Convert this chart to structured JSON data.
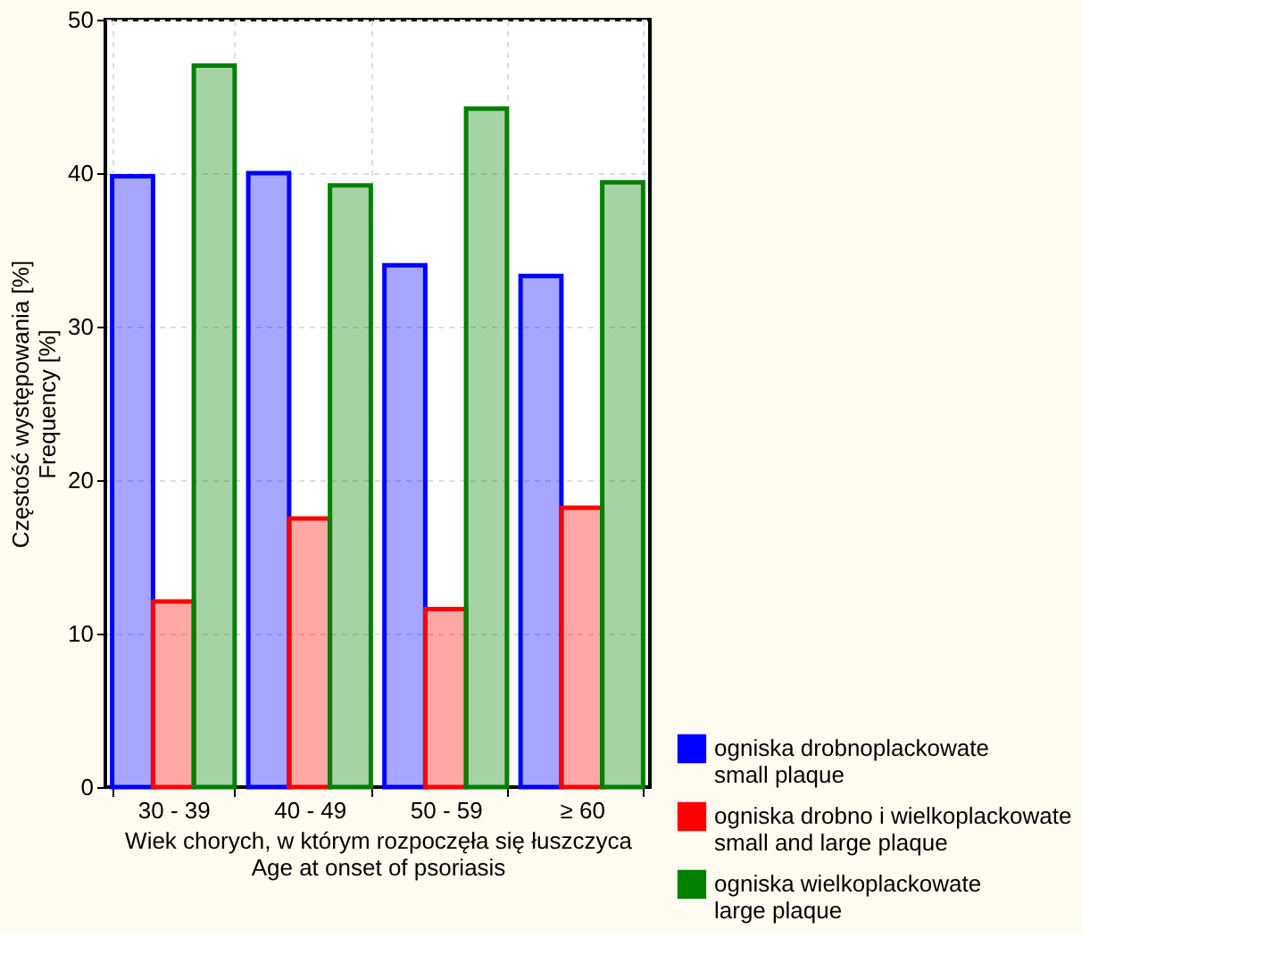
{
  "chart_data": {
    "type": "bar",
    "categories": [
      "30 - 39",
      "40 - 49",
      "50 - 59",
      "≥ 60"
    ],
    "xlabel": "Wiek chorych, w którym rozpoczęła się łuszczyca\nAge at onset of psoriasis",
    "ylabel": "Częstość występowania [%]\nFrequency [%]",
    "series": [
      {
        "name": "ogniska drobnoplackowate\nsmall plaque",
        "color": "#0000ff",
        "values": [
          39.8,
          40.0,
          34.0,
          33.3
        ]
      },
      {
        "name": "ogniska drobno i wielkoplackowate\nsmall and large plaque",
        "color": "#ff0000",
        "values": [
          12.1,
          17.5,
          11.6,
          18.2
        ]
      },
      {
        "name": "ogniska wielkoplackowate\nlarge plaque",
        "color": "#008000",
        "values": [
          47.0,
          39.2,
          44.2,
          39.4
        ]
      }
    ],
    "ylim": [
      0,
      50
    ],
    "yticks": [
      0,
      10,
      20,
      30,
      40,
      50
    ],
    "grid": true,
    "legend": "bottom right"
  }
}
